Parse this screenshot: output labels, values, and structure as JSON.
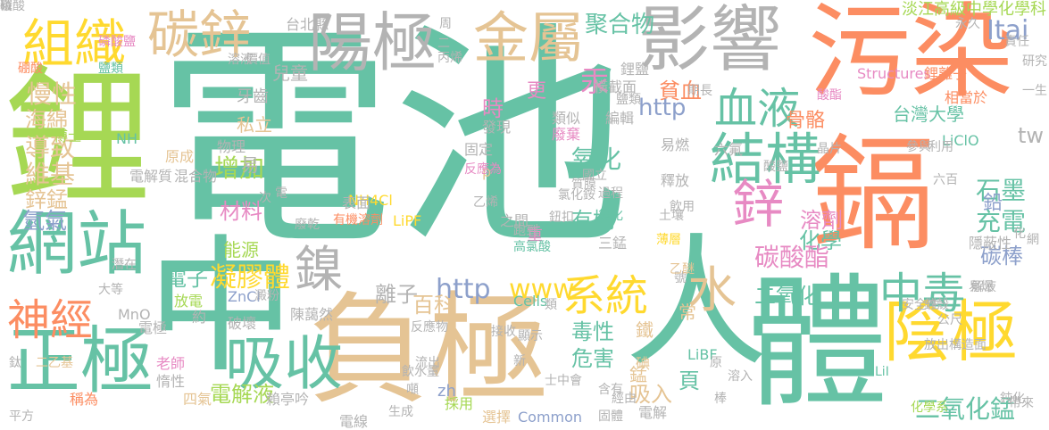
{
  "palette": {
    "teal": "#66c2a5",
    "orange": "#fc8d62",
    "blue": "#8da0cb",
    "pink": "#e78ac3",
    "green": "#a6d854",
    "yellow": "#ffd92f",
    "tan": "#e5c494",
    "gray": "#b3b3b3"
  },
  "words": [
    {
      "text": "電池",
      "color": "#66c2a5"
    },
    {
      "text": "鋰",
      "color": "#a6d854"
    },
    {
      "text": "中",
      "color": "#66c2a5"
    },
    {
      "text": "人",
      "color": "#66c2a5"
    },
    {
      "text": "體",
      "color": "#66c2a5"
    },
    {
      "text": "負極",
      "color": "#e5c494"
    },
    {
      "text": "鎘",
      "color": "#fc8d62"
    },
    {
      "text": "污染",
      "color": "#fc8d62"
    },
    {
      "text": "影響",
      "color": "#b3b3b3"
    },
    {
      "text": "陽極",
      "color": "#b3b3b3"
    },
    {
      "text": "金屬",
      "color": "#e5c494"
    },
    {
      "text": "碳鋅",
      "color": "#e5c494"
    },
    {
      "text": "組織",
      "color": "#ffd92f"
    },
    {
      "text": "網站",
      "color": "#66c2a5"
    },
    {
      "text": "正極",
      "color": "#66c2a5"
    },
    {
      "text": "陰極",
      "color": "#ffd92f"
    },
    {
      "text": "結構",
      "color": "#66c2a5"
    },
    {
      "text": "吸收",
      "color": "#66c2a5"
    },
    {
      "text": "鎳",
      "color": "#b3b3b3"
    },
    {
      "text": "神經",
      "color": "#fc8d62"
    },
    {
      "text": "血液",
      "color": "#66c2a5"
    },
    {
      "text": "系統",
      "color": "#ffd92f"
    },
    {
      "text": "水",
      "color": "#e5c494"
    },
    {
      "text": "中毒",
      "color": "#66c2a5"
    },
    {
      "text": "鋅",
      "color": "#e78ac3"
    },
    {
      "text": "聚合物",
      "color": "#66c2a5"
    },
    {
      "text": "慢性",
      "color": "#e5c494"
    },
    {
      "text": "海綿",
      "color": "#e5c494"
    },
    {
      "text": "導致",
      "color": "#e5c494"
    },
    {
      "text": "維基",
      "color": "#e5c494"
    },
    {
      "text": "鋅錳",
      "color": "#e5c494"
    },
    {
      "text": "氫氣",
      "color": "#8da0cb"
    },
    {
      "text": "兒童",
      "color": "#b3b3b3"
    },
    {
      "text": "汞",
      "color": "#e78ac3"
    },
    {
      "text": "時",
      "color": "#e78ac3"
    },
    {
      "text": "更",
      "color": "#e78ac3"
    },
    {
      "text": "氧化",
      "color": "#66c2a5"
    },
    {
      "text": "增加",
      "color": "#a6d854"
    },
    {
      "text": "材料",
      "color": "#e78ac3"
    },
    {
      "text": "能源",
      "color": "#a6d854"
    },
    {
      "text": "電子",
      "color": "#66c2a5"
    },
    {
      "text": "凝膠體",
      "color": "#ffd92f"
    },
    {
      "text": "有機",
      "color": "#66c2a5"
    },
    {
      "text": "http",
      "color": "#8da0cb"
    },
    {
      "text": "www",
      "color": "#ffd92f"
    },
    {
      "text": "離子",
      "color": "#b3b3b3"
    },
    {
      "text": "百科",
      "color": "#e5c494"
    },
    {
      "text": "毒性",
      "color": "#66c2a5"
    },
    {
      "text": "危害",
      "color": "#66c2a5"
    },
    {
      "text": "電解液",
      "color": "#a6d854"
    },
    {
      "text": "吸入",
      "color": "#e5c494"
    },
    {
      "text": "貧血",
      "color": "#fc8d62"
    },
    {
      "text": "骨骼",
      "color": "#fc8d62"
    },
    {
      "text": "http",
      "color": "#8da0cb"
    },
    {
      "text": "溶劑",
      "color": "#e78ac3"
    },
    {
      "text": "化學",
      "color": "#66c2a5"
    },
    {
      "text": "碳酸酯",
      "color": "#e78ac3"
    },
    {
      "text": "二氧化",
      "color": "#66c2a5"
    },
    {
      "text": "二氧化錳",
      "color": "#66c2a5"
    },
    {
      "text": "石墨",
      "color": "#66c2a5"
    },
    {
      "text": "充電",
      "color": "#66c2a5"
    },
    {
      "text": "碳棒",
      "color": "#8da0cb"
    },
    {
      "text": "鉛",
      "color": "#8da0cb"
    },
    {
      "text": "tw",
      "color": "#b3b3b3"
    },
    {
      "text": "Itai",
      "color": "#8da0cb"
    },
    {
      "text": "淡江高級中學化學科",
      "color": "#a6d854"
    },
    {
      "text": "台灣大學",
      "color": "#66c2a5"
    },
    {
      "text": "LiClO",
      "color": "#66c2a5"
    },
    {
      "text": "Structures",
      "color": "#e78ac3"
    },
    {
      "text": "鋰離子",
      "color": "#fc8d62"
    },
    {
      "text": "相當於",
      "color": "#fc8d62"
    },
    {
      "text": "台北縣",
      "color": "#b3b3b3"
    },
    {
      "text": "牙齒",
      "color": "#b3b3b3"
    },
    {
      "text": "物理",
      "color": "#b3b3b3"
    },
    {
      "text": "私立",
      "color": "#e5c494"
    },
    {
      "text": "易",
      "color": "#b3b3b3"
    },
    {
      "text": "電解質",
      "color": "#b3b3b3"
    },
    {
      "text": "混合物",
      "color": "#b3b3b3"
    },
    {
      "text": "博士",
      "color": "#a6d854"
    },
    {
      "text": "NH",
      "color": "#66c2a5"
    },
    {
      "text": "NH4Cl",
      "color": "#ffd92f"
    },
    {
      "text": "表面",
      "color": "#b3b3b3"
    },
    {
      "text": "有機溶劑",
      "color": "#fc8d62"
    },
    {
      "text": "LiPF",
      "color": "#ffd92f"
    },
    {
      "text": "原成",
      "color": "#e5c494"
    },
    {
      "text": "放電",
      "color": "#a6d854"
    },
    {
      "text": "電極",
      "color": "#b3b3b3"
    },
    {
      "text": "約",
      "color": "#b3b3b3"
    },
    {
      "text": "ZnCl",
      "color": "#8da0cb"
    },
    {
      "text": "破壞",
      "color": "#b3b3b3"
    },
    {
      "text": "陳藹然",
      "color": "#b3b3b3"
    },
    {
      "text": "MnO",
      "color": "#b3b3b3"
    },
    {
      "text": "老師",
      "color": "#e78ac3"
    },
    {
      "text": "惰性",
      "color": "#b3b3b3"
    },
    {
      "text": "四氣",
      "color": "#e5c494"
    },
    {
      "text": "稱為",
      "color": "#fc8d62"
    },
    {
      "text": "賴亭吟",
      "color": "#b3b3b3"
    },
    {
      "text": "電線",
      "color": "#b3b3b3"
    },
    {
      "text": "採用",
      "color": "#a6d854"
    },
    {
      "text": "選擇",
      "color": "#e5c494"
    },
    {
      "text": "Common",
      "color": "#8da0cb"
    },
    {
      "text": "zh",
      "color": "#8da0cb"
    },
    {
      "text": "Cells",
      "color": "#66c2a5"
    },
    {
      "text": "LiBF",
      "color": "#66c2a5"
    },
    {
      "text": "頁",
      "color": "#66c2a5"
    },
    {
      "text": "錳",
      "color": "#e5c494"
    },
    {
      "text": "碘",
      "color": "#e5c494"
    },
    {
      "text": "鐵",
      "color": "#e5c494"
    },
    {
      "text": "常",
      "color": "#e5c494"
    },
    {
      "text": "重",
      "color": "#e78ac3"
    },
    {
      "text": "p",
      "color": "#e5c494"
    },
    {
      "text": "固定",
      "color": "#b3b3b3"
    },
    {
      "text": "發現",
      "color": "#b3b3b3"
    },
    {
      "text": "類似",
      "color": "#b3b3b3"
    },
    {
      "text": "廢棄",
      "color": "#e78ac3"
    },
    {
      "text": "編輯",
      "color": "#b3b3b3"
    },
    {
      "text": "易燃",
      "color": "#b3b3b3"
    },
    {
      "text": "釋放",
      "color": "#b3b3b3"
    },
    {
      "text": "國立",
      "color": "#b3b3b3"
    },
    {
      "text": "過程",
      "color": "#b3b3b3"
    },
    {
      "text": "土壤",
      "color": "#b3b3b3"
    },
    {
      "text": "氯化",
      "color": "#66c2a5"
    },
    {
      "text": "薄層",
      "color": "#ffd92f"
    },
    {
      "text": "三錳",
      "color": "#b3b3b3"
    },
    {
      "text": "高氯酸",
      "color": "#66c2a5"
    },
    {
      "text": "跑到",
      "color": "#b3b3b3"
    },
    {
      "text": "之間",
      "color": "#b3b3b3"
    },
    {
      "text": "反應為",
      "color": "#e78ac3"
    },
    {
      "text": "氯化銨",
      "color": "#b3b3b3"
    },
    {
      "text": "鈕扣",
      "color": "#b3b3b3"
    },
    {
      "text": "質膜",
      "color": "#b3b3b3"
    },
    {
      "text": "鹽類",
      "color": "#b3b3b3"
    },
    {
      "text": "鋰鹽",
      "color": "#b3b3b3"
    },
    {
      "text": "橫截面",
      "color": "#b3b3b3"
    },
    {
      "text": "六氟",
      "color": "#b3b3b3"
    },
    {
      "text": "酸鹽",
      "color": "#b3b3b3"
    },
    {
      "text": "晶片",
      "color": "#b3b3b3"
    },
    {
      "text": "隱蔽性",
      "color": "#b3b3b3"
    },
    {
      "text": "解液",
      "color": "#b3b3b3"
    },
    {
      "text": "易爆",
      "color": "#b3b3b3"
    },
    {
      "text": "安全性",
      "color": "#b3b3b3"
    },
    {
      "text": "鋅殼",
      "color": "#b3b3b3"
    },
    {
      "text": "公尺",
      "color": "#b3b3b3"
    },
    {
      "text": "構造面",
      "color": "#b3b3b3"
    },
    {
      "text": "放出",
      "color": "#b3b3b3"
    },
    {
      "text": "原",
      "color": "#b3b3b3"
    },
    {
      "text": "溶入",
      "color": "#b3b3b3"
    },
    {
      "text": "帶來",
      "color": "#b3b3b3"
    },
    {
      "text": "鈍化",
      "color": "#b3b3b3"
    },
    {
      "text": "化學系",
      "color": "#a6d854"
    },
    {
      "text": "LiI",
      "color": "#66c2a5"
    },
    {
      "text": "棒",
      "color": "#b3b3b3"
    },
    {
      "text": "固體",
      "color": "#b3b3b3"
    },
    {
      "text": "含有",
      "color": "#b3b3b3"
    },
    {
      "text": "噸",
      "color": "#b3b3b3"
    },
    {
      "text": "流出",
      "color": "#b3b3b3"
    },
    {
      "text": "反應物",
      "color": "#b3b3b3"
    },
    {
      "text": "飲水量",
      "color": "#b3b3b3"
    },
    {
      "text": "接收",
      "color": "#b3b3b3"
    },
    {
      "text": "新",
      "color": "#b3b3b3"
    },
    {
      "text": "顯示",
      "color": "#b3b3b3"
    },
    {
      "text": "電解",
      "color": "#b3b3b3"
    },
    {
      "text": "經由",
      "color": "#b3b3b3"
    },
    {
      "text": "士中會",
      "color": "#b3b3b3"
    },
    {
      "text": "類",
      "color": "#b3b3b3"
    },
    {
      "text": "號",
      "color": "#b3b3b3"
    },
    {
      "text": "乙醚",
      "color": "#e5c494"
    },
    {
      "text": "硼酸",
      "color": "#fc8d62"
    },
    {
      "text": "鹽類",
      "color": "#66c2a5"
    },
    {
      "text": "磷酸鹽",
      "color": "#e78ac3"
    },
    {
      "text": "溶液",
      "color": "#b3b3b3"
    },
    {
      "text": "價值",
      "color": "#b3b3b3"
    },
    {
      "text": "周",
      "color": "#b3b3b3"
    },
    {
      "text": "二",
      "color": "#b3b3b3"
    },
    {
      "text": "丙烯",
      "color": "#b3b3b3"
    },
    {
      "text": "永久",
      "color": "#b3b3b3"
    },
    {
      "text": "責任",
      "color": "#b3b3b3"
    },
    {
      "text": "研究",
      "color": "#b3b3b3"
    },
    {
      "text": "酸酯",
      "color": "#e78ac3"
    },
    {
      "text": "參與",
      "color": "#b3b3b3"
    },
    {
      "text": "利用",
      "color": "#b3b3b3"
    },
    {
      "text": "一生",
      "color": "#b3b3b3"
    },
    {
      "text": "六百",
      "color": "#b3b3b3"
    },
    {
      "text": "期長",
      "color": "#b3b3b3"
    },
    {
      "text": "廢乾",
      "color": "#b3b3b3"
    },
    {
      "text": "次",
      "color": "#b3b3b3"
    },
    {
      "text": "電",
      "color": "#b3b3b3"
    },
    {
      "text": "乙烯",
      "color": "#b3b3b3"
    },
    {
      "text": "飲用",
      "color": "#b3b3b3"
    },
    {
      "text": "化",
      "color": "#b3b3b3"
    },
    {
      "text": "網",
      "color": "#b3b3b3"
    },
    {
      "text": "大等",
      "color": "#b3b3b3"
    },
    {
      "text": "澱粉",
      "color": "#b3b3b3"
    },
    {
      "text": "鈦",
      "color": "#b3b3b3"
    },
    {
      "text": "二乙基",
      "color": "#e5c494"
    },
    {
      "text": "潛在",
      "color": "#b3b3b3"
    },
    {
      "text": "平方",
      "color": "#b3b3b3"
    },
    {
      "text": "生成",
      "color": "#b3b3b3"
    },
    {
      "text": "磷酸",
      "color": "#b3b3b3"
    },
    {
      "text": "粒",
      "color": "#b3b3b3"
    },
    {
      "text": "碳",
      "color": "#b3b3b3"
    }
  ]
}
